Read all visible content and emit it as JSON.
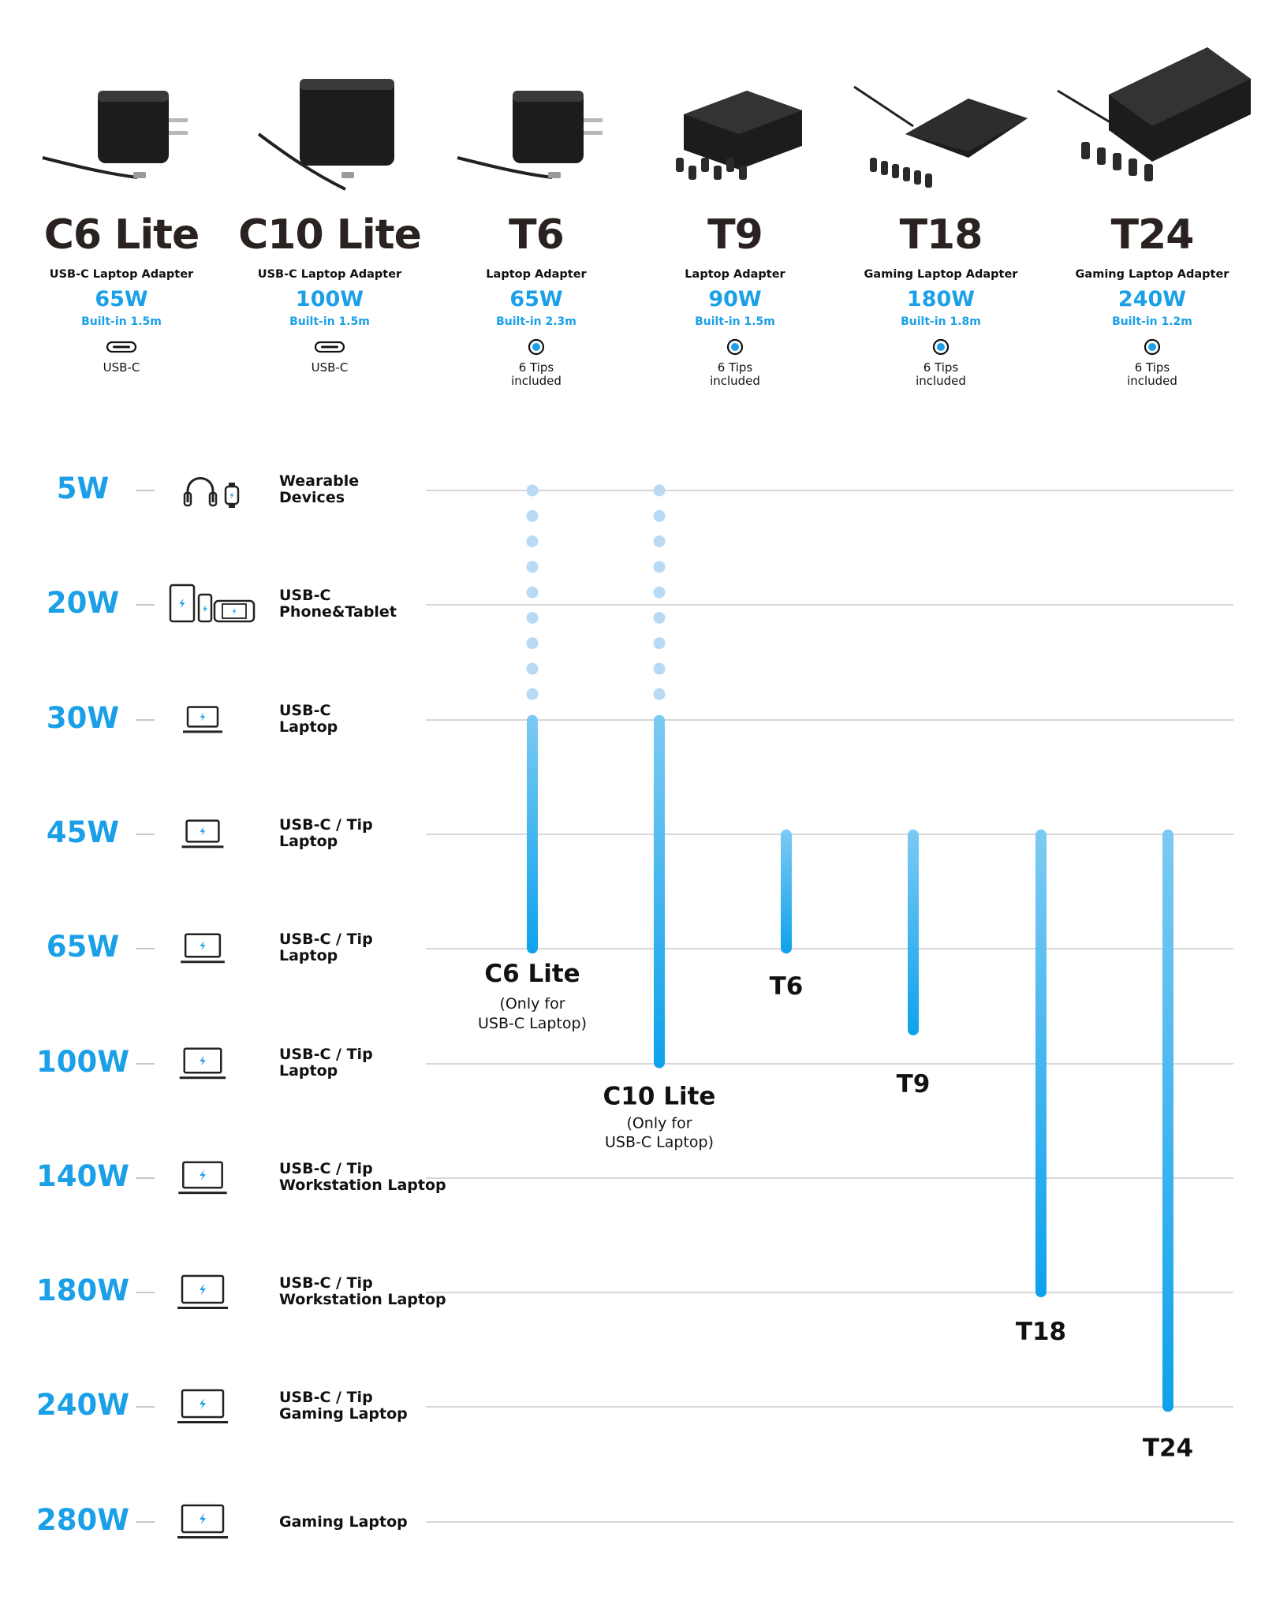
{
  "colors": {
    "accent": "#1ba0e8",
    "accent_light": "#7ccaf3",
    "dot": "#b8daf5",
    "grid": "#d7d7d7"
  },
  "products": [
    {
      "name": "C6 Lite",
      "subtitle": "USB-C Laptop Adapter",
      "power": "65W",
      "cable": "Built-in 1.5m",
      "connector_icon": "usb-c-port-icon",
      "connector": "USB-C",
      "connector_line2": ""
    },
    {
      "name": "C10 Lite",
      "subtitle": "USB-C Laptop Adapter",
      "power": "100W",
      "cable": "Built-in 1.5m",
      "connector_icon": "usb-c-port-icon",
      "connector": "USB-C",
      "connector_line2": ""
    },
    {
      "name": "T6",
      "subtitle": "Laptop Adapter",
      "power": "65W",
      "cable": "Built-in 2.3m",
      "connector_icon": "barrel-tip-icon",
      "connector": "6 Tips",
      "connector_line2": "included"
    },
    {
      "name": "T9",
      "subtitle": "Laptop Adapter",
      "power": "90W",
      "cable": "Built-in 1.5m",
      "connector_icon": "barrel-tip-icon",
      "connector": "6 Tips",
      "connector_line2": "included"
    },
    {
      "name": "T18",
      "subtitle": "Gaming Laptop Adapter",
      "power": "180W",
      "cable": "Built-in 1.8m",
      "connector_icon": "barrel-tip-icon",
      "connector": "6 Tips",
      "connector_line2": "included"
    },
    {
      "name": "T24",
      "subtitle": "Gaming Laptop Adapter",
      "power": "240W",
      "cable": "Built-in 1.2m",
      "connector_icon": "barrel-tip-icon",
      "connector": "6 Tips",
      "connector_line2": "included"
    }
  ],
  "rows": [
    {
      "watt": "5W",
      "icon": "headphones-watch-icon",
      "label1": "Wearable",
      "label2": "Devices"
    },
    {
      "watt": "20W",
      "icon": "phone-tablet-icon",
      "label1": "USB-C",
      "label2": "Phone&Tablet"
    },
    {
      "watt": "30W",
      "icon": "laptop-icon",
      "label1": "USB-C",
      "label2": "Laptop"
    },
    {
      "watt": "45W",
      "icon": "laptop-icon",
      "label1": "USB-C / Tip",
      "label2": "Laptop"
    },
    {
      "watt": "65W",
      "icon": "laptop-icon",
      "label1": "USB-C / Tip",
      "label2": "Laptop"
    },
    {
      "watt": "100W",
      "icon": "laptop-icon",
      "label1": "USB-C / Tip",
      "label2": "Laptop"
    },
    {
      "watt": "140W",
      "icon": "laptop-icon",
      "label1": "USB-C / Tip",
      "label2": "Workstation Laptop"
    },
    {
      "watt": "180W",
      "icon": "laptop-icon",
      "label1": "USB-C / Tip",
      "label2": "Workstation Laptop"
    },
    {
      "watt": "240W",
      "icon": "laptop-icon",
      "label1": "USB-C / Tip",
      "label2": "Gaming Laptop"
    },
    {
      "watt": "280W",
      "icon": "laptop-icon",
      "label1": "Gaming Laptop",
      "label2": ""
    }
  ],
  "chart_data": {
    "type": "bar",
    "orientation": "vertical-range",
    "categories": [
      "5W",
      "20W",
      "30W",
      "45W",
      "65W",
      "100W",
      "140W",
      "180W",
      "240W",
      "280W"
    ],
    "series": [
      {
        "name": "C6 Lite",
        "note": [
          "(Only for",
          "USB-C Laptop)"
        ],
        "dotted_from": "5W",
        "solid_from": "30W",
        "to": "65W"
      },
      {
        "name": "C10 Lite",
        "note": [
          "(Only for",
          "USB-C Laptop)"
        ],
        "dotted_from": "5W",
        "solid_from": "30W",
        "to": "100W"
      },
      {
        "name": "T6",
        "note": [],
        "dotted_from": null,
        "solid_from": "45W",
        "to": "65W"
      },
      {
        "name": "T9",
        "note": [],
        "dotted_from": null,
        "solid_from": "45W",
        "to": "90W"
      },
      {
        "name": "T18",
        "note": [],
        "dotted_from": null,
        "solid_from": "45W",
        "to": "180W"
      },
      {
        "name": "T24",
        "note": [],
        "dotted_from": null,
        "solid_from": "45W",
        "to": "240W"
      }
    ],
    "grid": true
  }
}
